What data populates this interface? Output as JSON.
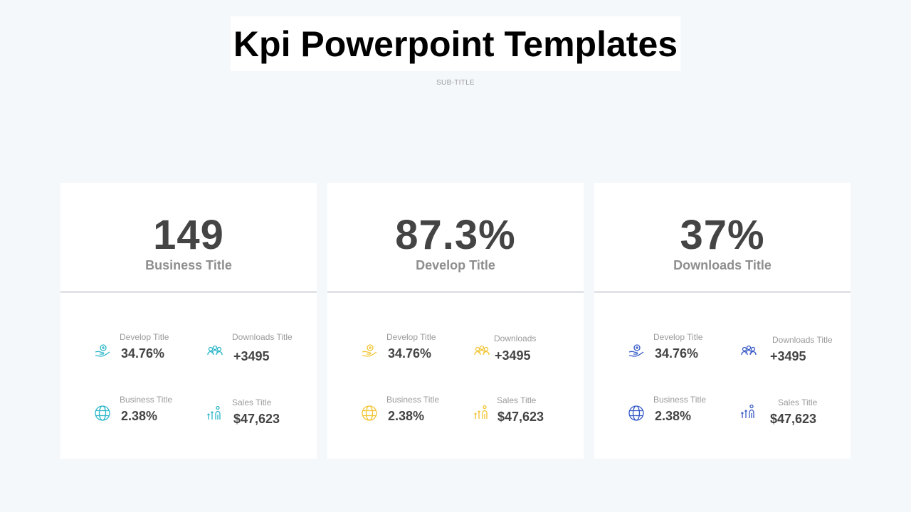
{
  "title": "Kpi Powerpoint Templates",
  "subtitle": "SUB-TITLE",
  "cards": [
    {
      "value": "149",
      "label": "Business Title",
      "accent": "#2bb6c9",
      "metrics": [
        {
          "label": "Develop Title",
          "value": "34.76%",
          "icon": "hand-coins-icon"
        },
        {
          "label": "Downloads  Title",
          "value": "+3495",
          "icon": "people-group-icon"
        },
        {
          "label": "Business Title",
          "value": "2.38%",
          "icon": "globe-www-icon"
        },
        {
          "label": "Sales Title",
          "value": "$47,623",
          "icon": "growth-person-icon"
        }
      ]
    },
    {
      "value": "87.3%",
      "label": "Develop Title",
      "accent": "#f2c432",
      "metrics": [
        {
          "label": "Develop Title",
          "value": "34.76%",
          "icon": "hand-coins-icon"
        },
        {
          "label": "Downloads",
          "value": "+3495",
          "icon": "people-group-icon"
        },
        {
          "label": "Business Title",
          "value": "2.38%",
          "icon": "globe-www-icon"
        },
        {
          "label": "Sales Title",
          "value": "$47,623",
          "icon": "growth-person-icon"
        }
      ]
    },
    {
      "value": "37%",
      "label": "Downloads Title",
      "accent": "#3559c7",
      "metrics": [
        {
          "label": "Develop Title",
          "value": "34.76%",
          "icon": "hand-coins-icon"
        },
        {
          "label": "Downloads  Title",
          "value": "+3495",
          "icon": "people-group-icon"
        },
        {
          "label": "Business Title",
          "value": "2.38%",
          "icon": "globe-www-icon"
        },
        {
          "label": "Sales Title",
          "value": "$47,623",
          "icon": "growth-person-icon"
        }
      ]
    }
  ]
}
